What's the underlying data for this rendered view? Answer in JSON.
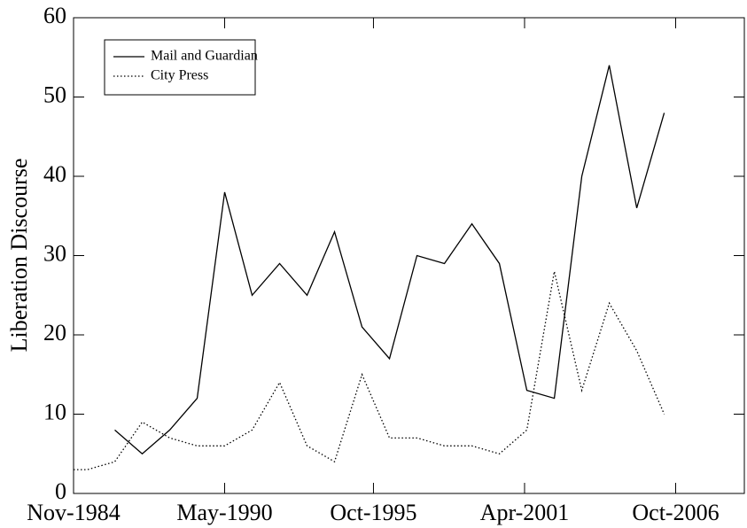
{
  "chart_data": {
    "type": "line",
    "ylabel": "Liberation Discourse",
    "x": [
      "Nov-1984",
      "May-1985",
      "May-1986",
      "May-1987",
      "May-1988",
      "May-1989",
      "May-1990",
      "May-1991",
      "May-1992",
      "May-1993",
      "May-1994",
      "May-1995",
      "May-1996",
      "May-1997",
      "May-1998",
      "May-1999",
      "May-2000",
      "May-2001",
      "May-2002",
      "May-2003",
      "May-2004",
      "May-2005",
      "May-2006"
    ],
    "series": [
      {
        "name": "Mail and Guardian",
        "color": "#000000",
        "dash": "solid",
        "values": [
          null,
          null,
          8,
          5,
          8,
          12,
          38,
          25,
          29,
          25,
          33,
          21,
          17,
          30,
          29,
          34,
          29,
          13,
          12,
          40,
          54,
          36,
          48
        ]
      },
      {
        "name": "City Press",
        "color": "#000000",
        "dash": "dotted",
        "values": [
          3,
          3,
          4,
          9,
          7,
          6,
          6,
          8,
          14,
          6,
          4,
          15,
          7,
          7,
          6,
          6,
          5,
          8,
          28,
          13,
          24,
          18,
          10
        ]
      }
    ],
    "xlim": [
      "Nov-1984",
      "Apr-2009"
    ],
    "xticks": [
      "Nov-1984",
      "May-1990",
      "Oct-1995",
      "Apr-2001",
      "Oct-2006"
    ],
    "ylim": [
      0,
      60
    ],
    "yticks": [
      0,
      10,
      20,
      30,
      40,
      50,
      60
    ],
    "legend": "upper left"
  }
}
